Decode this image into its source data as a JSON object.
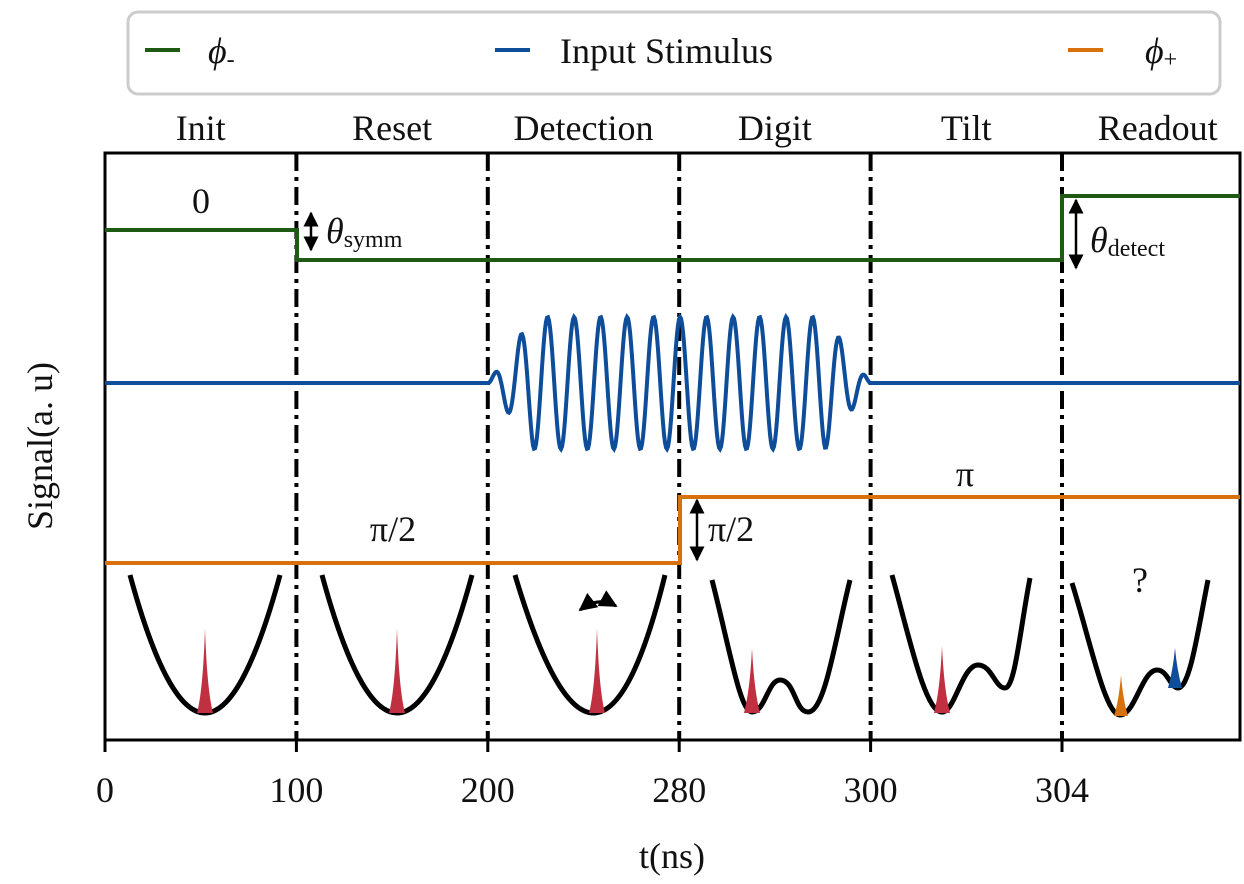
{
  "legend": {
    "items": [
      {
        "symbol": "ϕ",
        "sub": "-",
        "color": "#1e5a14"
      },
      {
        "name": "Input Stimulus",
        "color": "#0d4d9a"
      },
      {
        "symbol": "ϕ",
        "sub": "+",
        "color": "#d8700c"
      }
    ]
  },
  "phases": [
    "Init",
    "Reset",
    "Detection",
    "Digit",
    "Tilt",
    "Readout"
  ],
  "axis": {
    "xlabel": "t(ns)",
    "ylabel": "Signal(a. u)",
    "xticks": [
      0,
      100,
      200,
      280,
      300,
      304
    ]
  },
  "annotations": {
    "init_level": "0",
    "symm": {
      "symbol": "θ",
      "sub": "symm"
    },
    "detect": {
      "symbol": "θ",
      "sub": "detect"
    },
    "phi_low": "π/2",
    "phi_step": "π/2",
    "phi_high": "π",
    "readout": "?"
  }
}
